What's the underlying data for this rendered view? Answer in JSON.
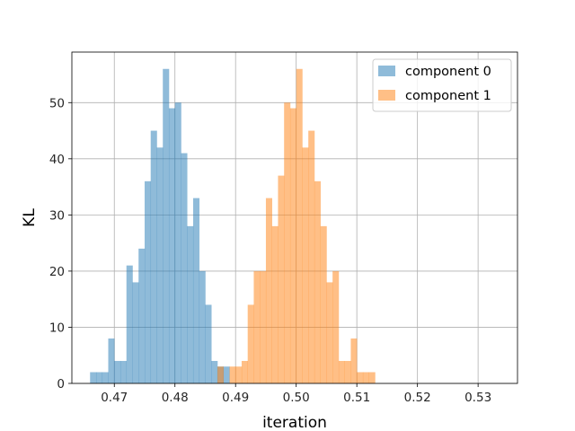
{
  "chart_data": {
    "type": "histogram",
    "title": "",
    "xlabel": "iteration",
    "ylabel": "KL",
    "xlim": [
      0.463,
      0.5365
    ],
    "ylim": [
      0,
      59
    ],
    "xticks": [
      0.47,
      0.48,
      0.49,
      0.5,
      0.51,
      0.52,
      0.53
    ],
    "xtick_labels": [
      "0.47",
      "0.48",
      "0.49",
      "0.50",
      "0.51",
      "0.52",
      "0.53"
    ],
    "yticks": [
      0,
      10,
      20,
      30,
      40,
      50
    ],
    "ytick_labels": [
      "0",
      "10",
      "20",
      "30",
      "40",
      "50"
    ],
    "grid": true,
    "legend_position": "top-right",
    "series": [
      {
        "name": "component 0",
        "color": "#1f77b4",
        "alpha": 0.5,
        "bin_start": 0.466,
        "bin_width": 0.001,
        "counts": [
          2,
          2,
          2,
          8,
          4,
          4,
          21,
          18,
          24,
          36,
          45,
          42,
          56,
          49,
          50,
          41,
          28,
          33,
          20,
          14,
          4,
          3,
          3
        ]
      },
      {
        "name": "component 1",
        "color": "#ff7f0e",
        "alpha": 0.5,
        "bin_start": 0.487,
        "bin_width": 0.001,
        "counts": [
          3,
          0,
          3,
          3,
          4,
          14,
          20,
          20,
          33,
          28,
          37,
          50,
          49,
          56,
          42,
          45,
          36,
          28,
          18,
          20,
          4,
          4,
          8,
          2,
          2,
          2
        ]
      }
    ]
  }
}
